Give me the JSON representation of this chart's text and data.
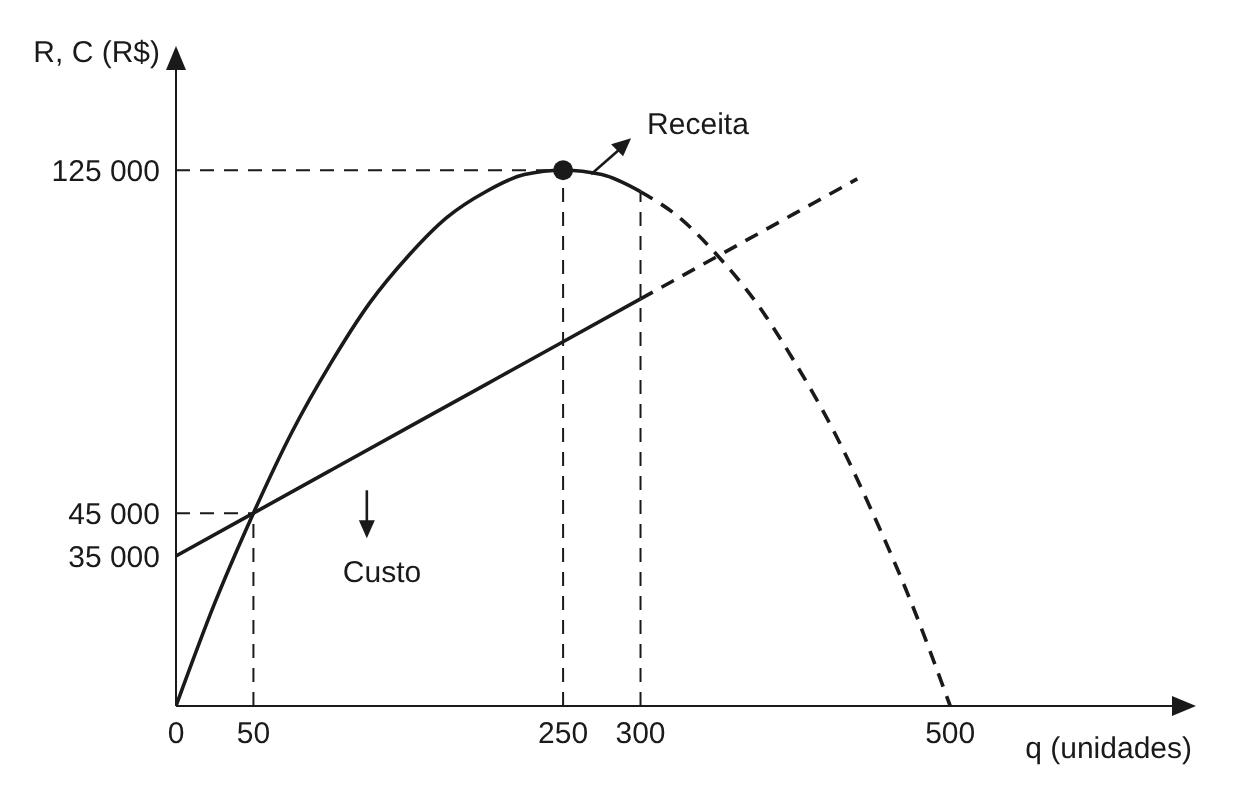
{
  "chart_data": {
    "type": "line",
    "xlabel": "q (unidades)",
    "ylabel": "R, C (R$)",
    "xlim": [
      0,
      620
    ],
    "ylim": [
      0,
      140000
    ],
    "xticks": [
      0,
      50,
      250,
      300,
      500
    ],
    "yticks": [
      {
        "value": 35000,
        "label": "35 000"
      },
      {
        "value": 45000,
        "label": "45 000"
      },
      {
        "value": 125000,
        "label": "125 000"
      }
    ],
    "marker": "none",
    "series": [
      {
        "name": "Receita",
        "color": "#1a1a1a",
        "line_style": "solid",
        "x": [
          0,
          25,
          50,
          75,
          100,
          125,
          150,
          175,
          200,
          225,
          250,
          275,
          300
        ],
        "values": [
          0,
          24000,
          45000,
          64000,
          80000,
          94000,
          105000,
          114000,
          120000,
          124000,
          125000,
          124000,
          120000
        ]
      },
      {
        "color": "#1a1a1a",
        "line_style": "dashed",
        "x": [
          300,
          325,
          350,
          375,
          400,
          425,
          450,
          475,
          500
        ],
        "values": [
          120000,
          114000,
          105000,
          94000,
          80000,
          64000,
          45000,
          24000,
          0
        ]
      },
      {
        "name": "Custo",
        "color": "#1a1a1a",
        "line_style": "solid",
        "x": [
          0,
          50,
          100,
          150,
          200,
          250,
          300
        ],
        "values": [
          35000,
          45000,
          55000,
          65000,
          75000,
          85000,
          95000
        ]
      },
      {
        "color": "#1a1a1a",
        "line_style": "dashed",
        "x": [
          300,
          350,
          400,
          440
        ],
        "values": [
          95000,
          105000,
          115000,
          123000
        ]
      },
      {
        "type": "scatter",
        "color": "#1a1a1a",
        "marker": "circle",
        "x": [
          250
        ],
        "values": [
          125000
        ]
      }
    ],
    "ref_lines": [
      {
        "axis": "x",
        "value": 50,
        "line_style": "dashed",
        "color": "#1a1a1a"
      },
      {
        "axis": "x",
        "value": 250,
        "line_style": "dashed",
        "color": "#1a1a1a"
      },
      {
        "axis": "x",
        "value": 300,
        "line_style": "dashed",
        "color": "#1a1a1a"
      },
      {
        "axis": "y",
        "value": 45000,
        "line_style": "dashed",
        "color": "#1a1a1a"
      },
      {
        "axis": "y",
        "value": 125000,
        "line_style": "dashed",
        "color": "#1a1a1a"
      }
    ]
  }
}
